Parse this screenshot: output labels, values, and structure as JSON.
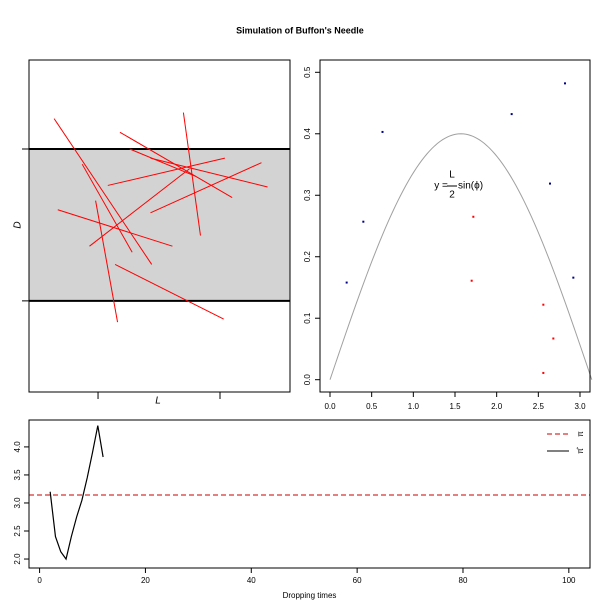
{
  "title": "Simulation of Buffon's Needle",
  "chart_data": [
    {
      "type": "segments",
      "color": "red",
      "ylabel": "D",
      "xlabel": "L",
      "band": [
        0,
        1
      ],
      "xticks": [
        0,
        1
      ],
      "xlim": [
        -0.566,
        1.574
      ],
      "ylim": [
        -0.6,
        1.586
      ],
      "needles": [
        [
          -0.36,
          1.2,
          0.44,
          0.24
        ],
        [
          0.18,
          1.11,
          1.1,
          0.68
        ],
        [
          0.7,
          1.24,
          0.84,
          0.43
        ],
        [
          -0.13,
          0.9,
          0.28,
          0.32
        ],
        [
          0.08,
          0.76,
          1.04,
          0.94
        ],
        [
          0.43,
          0.94,
          1.39,
          0.75
        ],
        [
          0.43,
          0.58,
          1.34,
          0.91
        ],
        [
          -0.33,
          0.6,
          0.61,
          0.36
        ],
        [
          -0.07,
          0.36,
          0.75,
          0.87
        ],
        [
          -0.02,
          0.66,
          0.16,
          -0.14
        ],
        [
          0.14,
          0.24,
          1.03,
          -0.12
        ],
        [
          0.26,
          1.0,
          0.8,
          0.82
        ]
      ]
    },
    {
      "type": "scatter",
      "needle_length": 0.8,
      "curve_color": "#a0a0a0",
      "annotation": {
        "lhs": "y =",
        "num": "L",
        "den": "2",
        "rhs": "sin(ϕ)"
      },
      "xlim": [
        -0.12,
        3.12
      ],
      "ylim": [
        -0.02,
        0.52
      ],
      "xticks": [
        {
          "value": 0,
          "label": "0.0"
        },
        {
          "value": 0.5,
          "label": "0.5"
        },
        {
          "value": 1,
          "label": "1.0"
        },
        {
          "value": 1.5,
          "label": "1.5"
        },
        {
          "value": 2,
          "label": "2.0"
        },
        {
          "value": 2.5,
          "label": "2.5"
        },
        {
          "value": 3,
          "label": "3.0"
        }
      ],
      "yticks": [
        {
          "value": 0,
          "label": "0.0"
        },
        {
          "value": 0.1,
          "label": "0.1"
        },
        {
          "value": 0.2,
          "label": "0.2"
        },
        {
          "value": 0.3,
          "label": "0.3"
        },
        {
          "value": 0.4,
          "label": "0.4"
        },
        {
          "value": 0.5,
          "label": "0.5"
        }
      ],
      "series": [
        {
          "color": "#00008b",
          "x": [
            0.63,
            2.82,
            2.18,
            2.64,
            0.4,
            0.2,
            2.92
          ],
          "values": [
            0.403,
            0.482,
            0.432,
            0.319,
            0.257,
            0.158,
            0.166
          ]
        },
        {
          "color": "red",
          "x": [
            1.72,
            1.7,
            2.56,
            2.68,
            2.56
          ],
          "values": [
            0.265,
            0.161,
            0.122,
            0.067,
            0.011
          ]
        }
      ]
    },
    {
      "type": "line",
      "xlabel": "Dropping times",
      "xlim": [
        -2,
        104
      ],
      "ylim": [
        1.84,
        4.48
      ],
      "xticks": [
        0,
        20,
        40,
        60,
        80,
        100
      ],
      "yticks": [
        {
          "value": 2,
          "label": "2.0"
        },
        {
          "value": 2.5,
          "label": "2.5"
        },
        {
          "value": 3,
          "label": "3.0"
        },
        {
          "value": 3.5,
          "label": "3.5"
        },
        {
          "value": 4,
          "label": "4.0"
        }
      ],
      "reference": {
        "name": "π",
        "value": 3.14159,
        "color": "#cc0000"
      },
      "series": [
        {
          "name": "π̂",
          "color": "black",
          "x": [
            2,
            3,
            4,
            5,
            6,
            7,
            8,
            9,
            10,
            11,
            12
          ],
          "values": [
            3.2,
            2.4,
            2.13,
            2.0,
            2.4,
            2.75,
            3.05,
            3.45,
            3.9,
            4.38,
            3.82
          ]
        }
      ],
      "legend": "top-right"
    }
  ]
}
